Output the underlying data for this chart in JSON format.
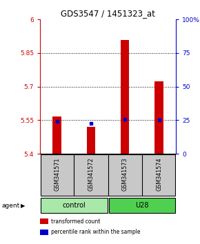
{
  "title": "GDS3547 / 1451323_at",
  "samples": [
    "GSM341571",
    "GSM341572",
    "GSM341573",
    "GSM341574"
  ],
  "bar_values": [
    5.565,
    5.52,
    5.91,
    5.725
  ],
  "bar_bottom": 5.4,
  "percentile_values": [
    5.545,
    5.537,
    5.555,
    5.55
  ],
  "ylim_left": [
    5.4,
    6.0
  ],
  "ylim_right": [
    0,
    100
  ],
  "yticks_left": [
    5.4,
    5.55,
    5.7,
    5.85,
    6.0
  ],
  "ytick_labels_left": [
    "5.4",
    "5.55",
    "5.7",
    "5.85",
    "6"
  ],
  "yticks_right": [
    0,
    25,
    50,
    75,
    100
  ],
  "ytick_labels_right": [
    "0",
    "25",
    "50",
    "75",
    "100%"
  ],
  "groups": [
    {
      "label": "control",
      "samples": [
        0,
        1
      ],
      "color": "#A8E8A8"
    },
    {
      "label": "U28",
      "samples": [
        2,
        3
      ],
      "color": "#50D050"
    }
  ],
  "bar_color": "#CC0000",
  "percentile_color": "#0000CC",
  "bar_width": 0.25,
  "agent_label": "agent",
  "legend_items": [
    {
      "color": "#CC0000",
      "label": "transformed count"
    },
    {
      "color": "#0000CC",
      "label": "percentile rank within the sample"
    }
  ],
  "sample_box_color": "#C8C8C8",
  "left_axis_color": "#CC0000",
  "right_axis_color": "#0000CC",
  "grid_ticks": [
    5.55,
    5.7,
    5.85
  ]
}
